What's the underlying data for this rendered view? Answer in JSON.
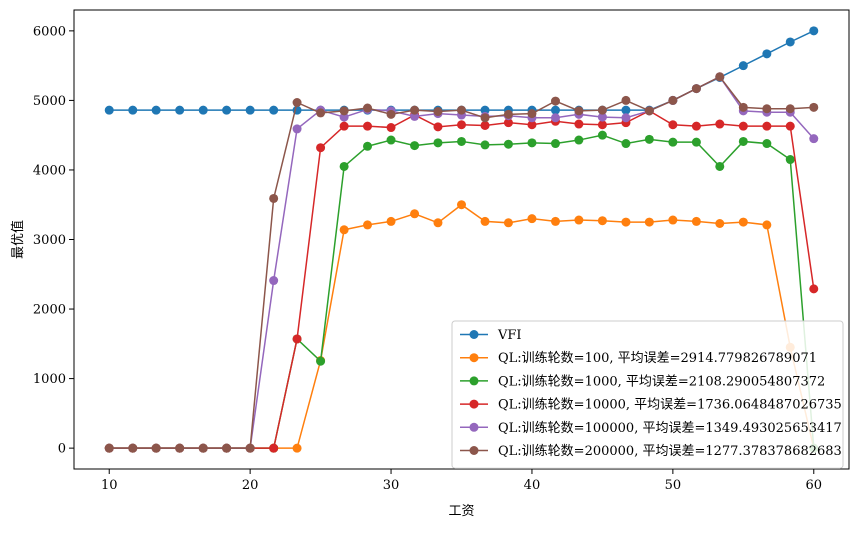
{
  "chart_data": {
    "type": "line",
    "xlabel": "工资",
    "ylabel": "最优值",
    "xlim": [
      7.5,
      62.5
    ],
    "ylim": [
      -300,
      6300
    ],
    "x_ticks": [
      10,
      20,
      30,
      40,
      50,
      60
    ],
    "y_ticks": [
      0,
      1000,
      2000,
      3000,
      4000,
      5000,
      6000
    ],
    "legend_position": "lower-right",
    "grid": false,
    "x": [
      10,
      11.67,
      13.33,
      15,
      16.67,
      18.33,
      20,
      21.67,
      23.33,
      25,
      26.67,
      28.33,
      30,
      31.67,
      33.33,
      35,
      36.67,
      38.33,
      40,
      41.67,
      43.33,
      45,
      46.67,
      48.33,
      50,
      51.67,
      53.33,
      55,
      56.67,
      58.33,
      60
    ],
    "series": [
      {
        "name": "VFI",
        "color": "#1f77b4",
        "values": [
          4860,
          4860,
          4860,
          4860,
          4860,
          4860,
          4860,
          4860,
          4860,
          4860,
          4860,
          4860,
          4860,
          4860,
          4860,
          4860,
          4860,
          4860,
          4860,
          4860,
          4860,
          4860,
          4860,
          4860,
          5000,
          5170,
          5330,
          5500,
          5670,
          5840,
          6000
        ]
      },
      {
        "name": "QL:训练轮数=100, 平均误差=2914.779826789071",
        "color": "#ff7f0e",
        "values": [
          0,
          0,
          0,
          0,
          0,
          0,
          0,
          0,
          0,
          1260,
          3140,
          3210,
          3260,
          3370,
          3240,
          3500,
          3260,
          3240,
          3300,
          3260,
          3280,
          3270,
          3250,
          3250,
          3280,
          3260,
          3230,
          3250,
          3210,
          1450,
          0
        ]
      },
      {
        "name": "QL:训练轮数=1000, 平均误差=2108.290054807372",
        "color": "#2ca02c",
        "values": [
          0,
          0,
          0,
          0,
          0,
          0,
          0,
          0,
          1570,
          1250,
          4050,
          4340,
          4430,
          4350,
          4390,
          4410,
          4360,
          4370,
          4390,
          4380,
          4430,
          4500,
          4380,
          4440,
          4400,
          4400,
          4050,
          4410,
          4380,
          4150,
          0
        ]
      },
      {
        "name": "QL:训练轮数=10000, 平均误差=1736.0648487026735",
        "color": "#d62728",
        "values": [
          0,
          0,
          0,
          0,
          0,
          0,
          0,
          0,
          1570,
          4320,
          4630,
          4630,
          4610,
          4790,
          4620,
          4650,
          4640,
          4680,
          4650,
          4700,
          4660,
          4650,
          4680,
          4850,
          4650,
          4630,
          4660,
          4630,
          4630,
          4630,
          2290
        ]
      },
      {
        "name": "QL:训练轮数=100000, 平均误差=1349.493025653417",
        "color": "#9467bd",
        "values": [
          0,
          0,
          0,
          0,
          0,
          0,
          0,
          2410,
          4590,
          4860,
          4760,
          4870,
          4850,
          4770,
          4810,
          4790,
          4770,
          4780,
          4750,
          4750,
          4800,
          4760,
          4750,
          4850,
          5000,
          5170,
          5340,
          4850,
          4830,
          4830,
          4450
        ]
      },
      {
        "name": "QL:训练轮数=200000, 平均误差=1277.378378682683",
        "color": "#8c564b",
        "values": [
          0,
          0,
          0,
          0,
          0,
          0,
          0,
          3590,
          4970,
          4820,
          4850,
          4890,
          4800,
          4860,
          4840,
          4860,
          4750,
          4800,
          4810,
          4990,
          4850,
          4860,
          5000,
          4850,
          5000,
          5170,
          5340,
          4900,
          4880,
          4880,
          4900
        ]
      }
    ]
  }
}
